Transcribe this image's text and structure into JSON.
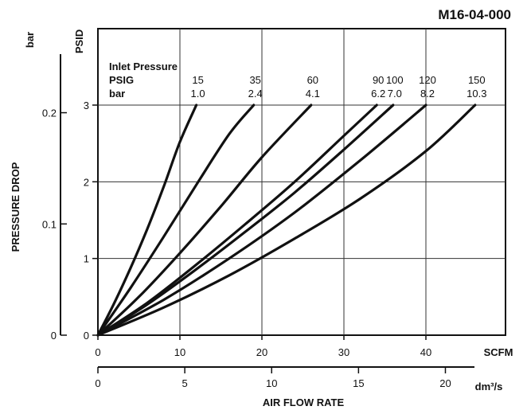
{
  "chart_data": {
    "type": "line",
    "code": "M16-04-000",
    "left_axis_title": "PRESSURE DROP",
    "left_unit_outer": "bar",
    "left_unit_inner": "PSID",
    "bottom_axis_title": "AIR FLOW RATE",
    "bottom_unit_scfm": "SCFM",
    "bottom_unit_dm3s": "dm³/s",
    "psid_ticks": [
      "0",
      "1",
      "2",
      "3"
    ],
    "bar_ticks": [
      "0",
      "0.1",
      "0.2"
    ],
    "scfm_ticks": [
      "0",
      "10",
      "20",
      "30",
      "40"
    ],
    "dm3s_ticks": [
      "0",
      "5",
      "10",
      "15",
      "20"
    ],
    "xlim_scfm": [
      0,
      48
    ],
    "ylim_psid": [
      0,
      4
    ],
    "grid": true,
    "legend": {
      "title": "Inlet Pressure",
      "row1_label": "PSIG",
      "row2_label": "bar"
    },
    "series": [
      {
        "psig": "15",
        "bar": "1.0",
        "x": [
          0,
          2,
          4,
          6,
          8,
          10,
          12
        ],
        "y": [
          0,
          0.42,
          0.88,
          1.38,
          1.93,
          2.52,
          3.0
        ]
      },
      {
        "psig": "35",
        "bar": "2.4",
        "x": [
          0,
          4,
          8,
          12,
          16,
          19
        ],
        "y": [
          0,
          0.62,
          1.28,
          1.96,
          2.62,
          3.0
        ]
      },
      {
        "psig": "60",
        "bar": "4.1",
        "x": [
          0,
          5,
          10,
          15,
          20,
          26
        ],
        "y": [
          0,
          0.5,
          1.07,
          1.68,
          2.32,
          3.0
        ]
      },
      {
        "psig": "90",
        "bar": "6.2",
        "x": [
          0,
          6,
          12,
          18,
          24,
          30,
          34
        ],
        "y": [
          0,
          0.42,
          0.92,
          1.45,
          2.0,
          2.6,
          3.0
        ]
      },
      {
        "psig": "100",
        "bar": "7.0",
        "x": [
          0,
          6,
          12,
          18,
          24,
          30,
          36
        ],
        "y": [
          0,
          0.4,
          0.86,
          1.35,
          1.86,
          2.42,
          3.0
        ]
      },
      {
        "psig": "120",
        "bar": "8.2",
        "x": [
          0,
          8,
          16,
          24,
          32,
          40
        ],
        "y": [
          0,
          0.46,
          1.0,
          1.6,
          2.28,
          3.0
        ]
      },
      {
        "psig": "150",
        "bar": "10.3",
        "x": [
          0,
          8,
          16,
          24,
          32,
          40,
          46
        ],
        "y": [
          0,
          0.36,
          0.78,
          1.26,
          1.78,
          2.4,
          3.0
        ]
      }
    ]
  }
}
